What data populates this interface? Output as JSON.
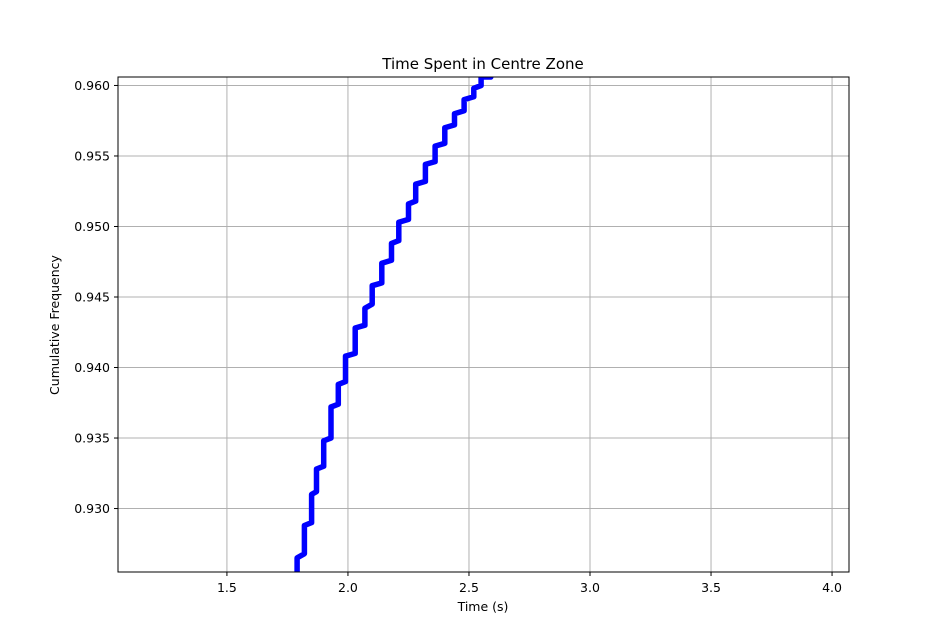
{
  "chart_data": {
    "type": "line",
    "title": "Time Spent in Centre Zone",
    "xlabel": "Time (s)",
    "ylabel": "Cumulative Frequency",
    "xlim": [
      1.05,
      4.07
    ],
    "ylim": [
      0.9255,
      0.9606
    ],
    "xticks": [
      1.5,
      2.0,
      2.5,
      3.0,
      3.5,
      4.0
    ],
    "xtick_labels": [
      "1.5",
      "2.0",
      "2.5",
      "3.0",
      "3.5",
      "4.0"
    ],
    "yticks": [
      0.93,
      0.935,
      0.94,
      0.945,
      0.95,
      0.955,
      0.96
    ],
    "ytick_labels": [
      "0.930",
      "0.935",
      "0.940",
      "0.945",
      "0.950",
      "0.955",
      "0.960"
    ],
    "grid": true,
    "series": [
      {
        "color": "#0000ff",
        "x": [
          1.79,
          1.79,
          1.82,
          1.82,
          1.85,
          1.85,
          1.87,
          1.87,
          1.9,
          1.9,
          1.93,
          1.93,
          1.96,
          1.96,
          1.99,
          1.99,
          2.03,
          2.03,
          2.07,
          2.07,
          2.1,
          2.1,
          2.14,
          2.14,
          2.18,
          2.18,
          2.21,
          2.21,
          2.25,
          2.25,
          2.28,
          2.28,
          2.32,
          2.32,
          2.36,
          2.36,
          2.4,
          2.4,
          2.44,
          2.44,
          2.48,
          2.48,
          2.52,
          2.52,
          2.55,
          2.55,
          2.59
        ],
        "y": [
          0.9255,
          0.9265,
          0.9268,
          0.9288,
          0.929,
          0.931,
          0.9312,
          0.9328,
          0.933,
          0.9348,
          0.935,
          0.9372,
          0.9374,
          0.9388,
          0.939,
          0.9408,
          0.941,
          0.9428,
          0.943,
          0.9442,
          0.9445,
          0.9458,
          0.946,
          0.9474,
          0.9476,
          0.9488,
          0.949,
          0.9503,
          0.9505,
          0.9516,
          0.9518,
          0.953,
          0.9532,
          0.9544,
          0.9546,
          0.9557,
          0.9559,
          0.957,
          0.9572,
          0.958,
          0.9582,
          0.959,
          0.9592,
          0.9598,
          0.96,
          0.9606,
          0.9606
        ]
      }
    ]
  }
}
